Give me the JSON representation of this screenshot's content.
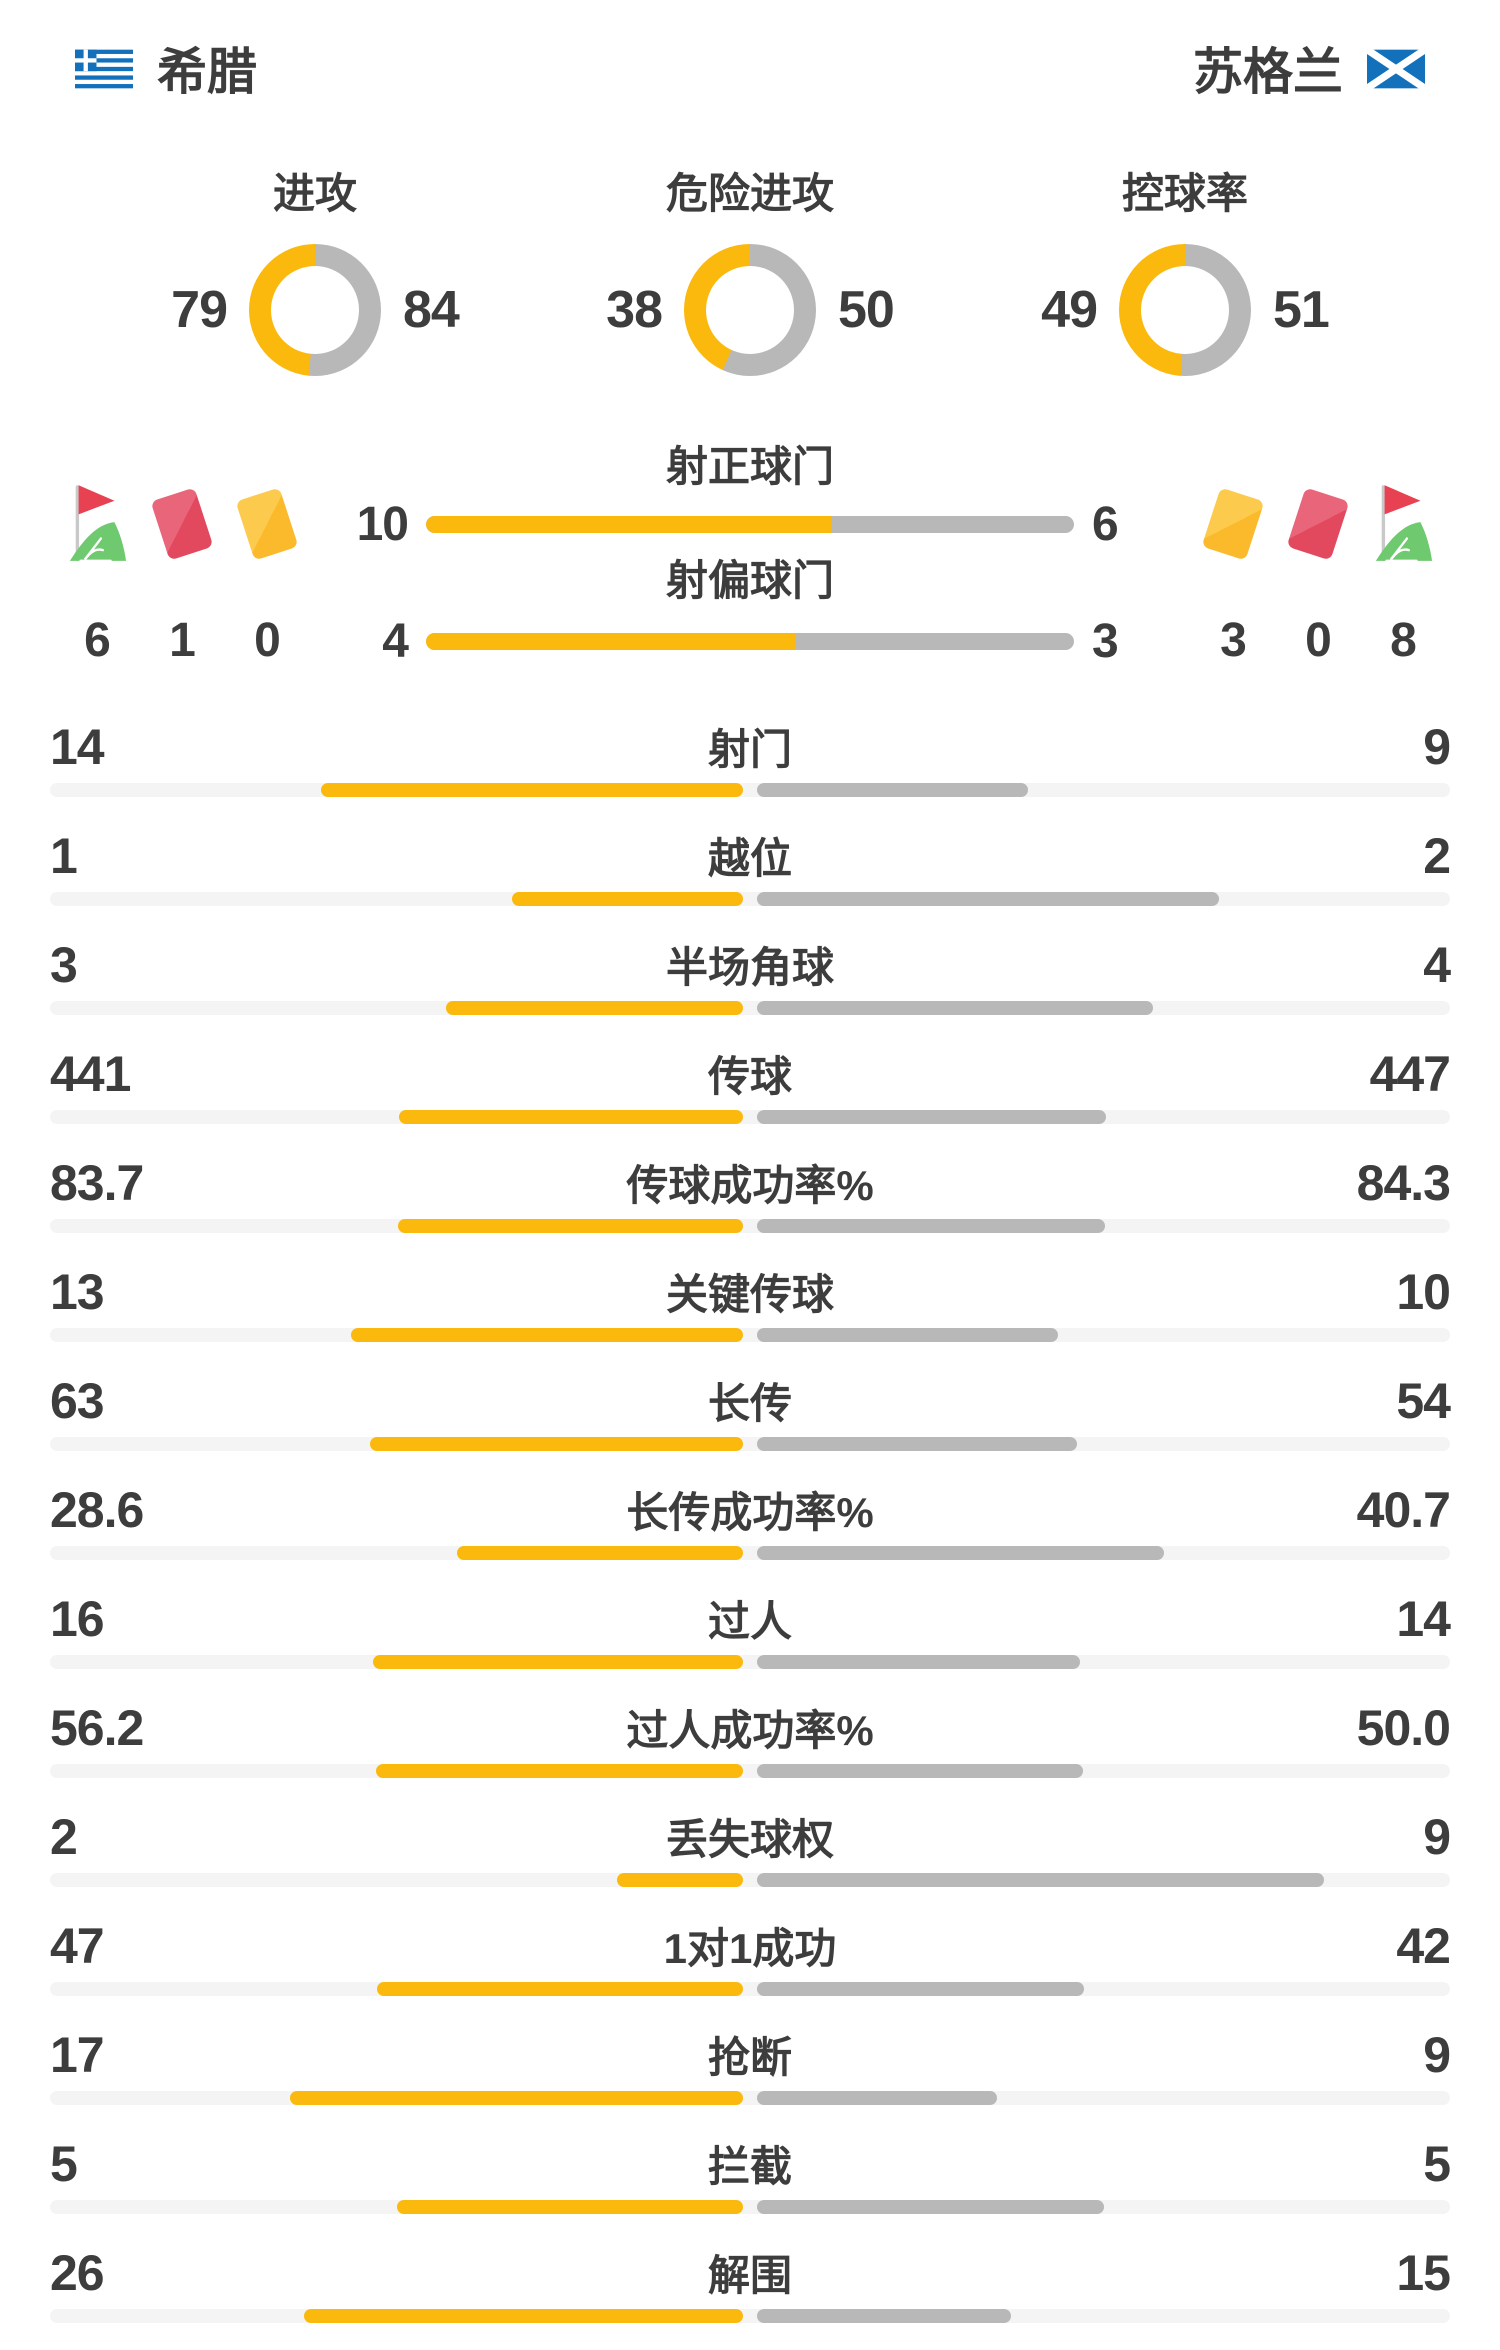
{
  "colors": {
    "accent_home": "#FBB90D",
    "accent_away": "#B8B8B8",
    "track": "#F4F4F4",
    "text": "#3D3D3D",
    "flag_blue": "#1371BC",
    "card_red": "#E2495F",
    "card_red_light": "#E9657A",
    "card_yellow": "#FBB92C",
    "card_yellow_light": "#FCCB4E",
    "flag_red": "#E84152",
    "flag_green": "#6FC96F",
    "pole_gray": "#C9C9C9"
  },
  "header": {
    "home_team": "希腊",
    "away_team": "苏格兰",
    "home_flag": "greece-flag-icon",
    "away_flag": "scotland-flag-icon"
  },
  "donuts": [
    {
      "label": "进攻",
      "home": 79,
      "away": 84
    },
    {
      "label": "危险进攻",
      "home": 38,
      "away": 50
    },
    {
      "label": "控球率",
      "home": 49,
      "away": 51
    }
  ],
  "shots": {
    "rows": [
      {
        "label": "射正球门",
        "home": 10,
        "away": 6
      },
      {
        "label": "射偏球门",
        "home": 4,
        "away": 3
      }
    ],
    "home_icons": [
      {
        "icon": "corner-flag-icon",
        "value": 6
      },
      {
        "icon": "red-card-icon",
        "value": 1
      },
      {
        "icon": "yellow-card-icon",
        "value": 0
      }
    ],
    "away_icons": [
      {
        "icon": "yellow-card-icon",
        "value": 3
      },
      {
        "icon": "red-card-icon",
        "value": 0
      },
      {
        "icon": "corner-flag-icon",
        "value": 8
      }
    ]
  },
  "stats": [
    {
      "label": "射门",
      "home": "14",
      "away": "9"
    },
    {
      "label": "越位",
      "home": "1",
      "away": "2"
    },
    {
      "label": "半场角球",
      "home": "3",
      "away": "4"
    },
    {
      "label": "传球",
      "home": "441",
      "away": "447"
    },
    {
      "label": "传球成功率%",
      "home": "83.7",
      "away": "84.3"
    },
    {
      "label": "关键传球",
      "home": "13",
      "away": "10"
    },
    {
      "label": "长传",
      "home": "63",
      "away": "54"
    },
    {
      "label": "长传成功率%",
      "home": "28.6",
      "away": "40.7"
    },
    {
      "label": "过人",
      "home": "16",
      "away": "14"
    },
    {
      "label": "过人成功率%",
      "home": "56.2",
      "away": "50.0"
    },
    {
      "label": "丢失球权",
      "home": "2",
      "away": "9"
    },
    {
      "label": "1对1成功",
      "home": "47",
      "away": "42"
    },
    {
      "label": "抢断",
      "home": "17",
      "away": "9"
    },
    {
      "label": "拦截",
      "home": "5",
      "away": "5"
    },
    {
      "label": "解围",
      "home": "26",
      "away": "15"
    }
  ],
  "chart_data": [
    {
      "type": "pie",
      "style": "donut-gauge",
      "title": "进攻",
      "labels": [
        "希腊",
        "苏格兰"
      ],
      "values": [
        79,
        84
      ],
      "colors": [
        "#FBB90D",
        "#B8B8B8"
      ]
    },
    {
      "type": "pie",
      "style": "donut-gauge",
      "title": "危险进攻",
      "labels": [
        "希腊",
        "苏格兰"
      ],
      "values": [
        38,
        50
      ],
      "colors": [
        "#FBB90D",
        "#B8B8B8"
      ]
    },
    {
      "type": "pie",
      "style": "donut-gauge",
      "title": "控球率",
      "labels": [
        "希腊",
        "苏格兰"
      ],
      "values": [
        49,
        51
      ],
      "colors": [
        "#FBB90D",
        "#B8B8B8"
      ]
    },
    {
      "type": "bar",
      "orientation": "horizontal-paired",
      "title": "球队技术统计",
      "legend_position": "none",
      "categories": [
        "射正球门",
        "射偏球门",
        "角球",
        "红牌",
        "黄牌",
        "射门",
        "越位",
        "半场角球",
        "传球",
        "传球成功率%",
        "关键传球",
        "长传",
        "长传成功率%",
        "过人",
        "过人成功率%",
        "丢失球权",
        "1对1成功",
        "抢断",
        "拦截",
        "解围"
      ],
      "series": [
        {
          "name": "希腊",
          "values": [
            10,
            4,
            6,
            1,
            0,
            14,
            1,
            3,
            441,
            83.7,
            13,
            63,
            28.6,
            16,
            56.2,
            2,
            47,
            17,
            5,
            26
          ]
        },
        {
          "name": "苏格兰",
          "values": [
            6,
            3,
            8,
            0,
            3,
            9,
            2,
            4,
            447,
            84.3,
            10,
            54,
            40.7,
            14,
            50.0,
            9,
            42,
            9,
            5,
            15
          ]
        }
      ]
    }
  ]
}
